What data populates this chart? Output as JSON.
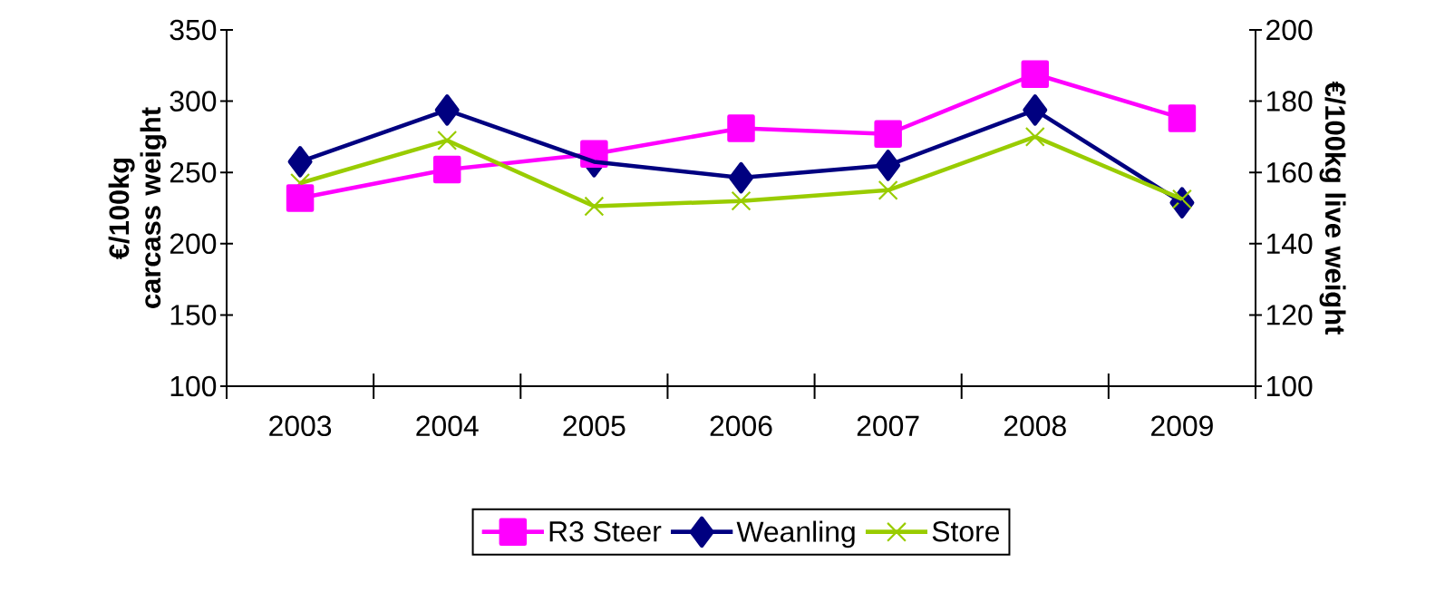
{
  "chart_data": {
    "type": "line",
    "categories": [
      "2003",
      "2004",
      "2005",
      "2006",
      "2007",
      "2008",
      "2009"
    ],
    "ylabel": "€/100kg carcass weight",
    "y2label": "€/100kg live weight",
    "ylim": [
      100,
      350
    ],
    "yticks": [
      100,
      150,
      200,
      250,
      300,
      350
    ],
    "y2lim": [
      100,
      200
    ],
    "y2ticks": [
      100,
      120,
      140,
      160,
      180,
      200
    ],
    "legend": "bottom",
    "grid": false,
    "line_style": "solid",
    "series": [
      {
        "name": "R3 Steer",
        "color": "#ff00ff",
        "marker": "square",
        "values": [
          232,
          252,
          263,
          281,
          277,
          319,
          288
        ]
      },
      {
        "name": "Weanling",
        "color": "#000080",
        "marker": "diamond",
        "axis": "y2",
        "values": [
          163,
          177.5,
          163,
          158.5,
          162,
          177.5,
          151.5
        ]
      },
      {
        "name": "Store",
        "color": "#99cc00",
        "marker": "cross",
        "axis": "y2",
        "values": [
          157,
          169,
          150.5,
          152,
          155,
          170,
          152.5
        ]
      }
    ]
  }
}
